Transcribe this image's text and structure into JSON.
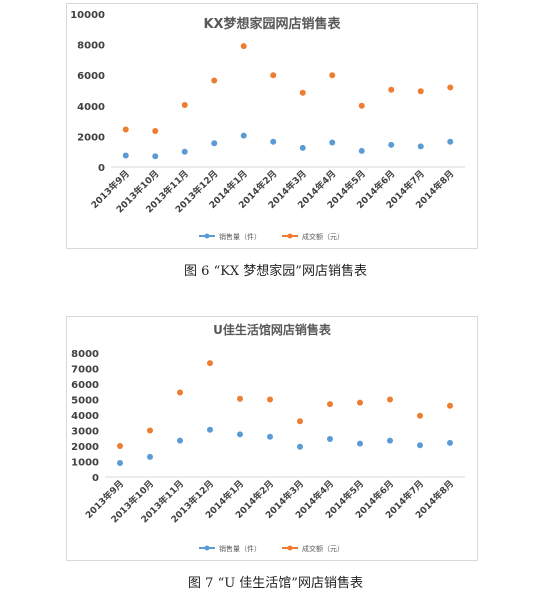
{
  "colors": {
    "series_sales": "#5B9BD5",
    "series_revenue": "#ED7D31",
    "axis": "#d9d9d9",
    "text": "#404040"
  },
  "figures": [
    {
      "caption": "图 6 “KX 梦想家园”网店销售表"
    },
    {
      "caption": "图 7 “U 佳生活馆”网店销售表"
    }
  ],
  "chart_data": [
    {
      "type": "scatter",
      "title": "KX梦想家园网店销售表",
      "xlabel": "",
      "ylabel": "",
      "ylim": [
        0,
        10000
      ],
      "yticks": [
        "0",
        "2000",
        "4000",
        "6000",
        "8000",
        "10000"
      ],
      "ytick_values": [
        0,
        2000,
        4000,
        6000,
        8000,
        10000
      ],
      "grid": false,
      "legend_position": "bottom",
      "categories": [
        "2013年9月",
        "2013年10月",
        "2013年11月",
        "2013年12月",
        "2014年1月",
        "2014年2月",
        "2014年3月",
        "2014年4月",
        "2014年5月",
        "2014年6月",
        "2014年7月",
        "2014年8月"
      ],
      "series": [
        {
          "name": "销售量（件）",
          "values": [
            750,
            700,
            1000,
            1550,
            2050,
            1650,
            1250,
            1600,
            1050,
            1450,
            1350,
            1650
          ]
        },
        {
          "name": "成交额（元）",
          "values": [
            2450,
            2350,
            4050,
            5650,
            7900,
            6000,
            4850,
            6000,
            4000,
            5050,
            4950,
            5200
          ]
        }
      ]
    },
    {
      "type": "scatter",
      "title": "U佳生活馆网店销售表",
      "xlabel": "",
      "ylabel": "",
      "ylim": [
        0,
        8000
      ],
      "yticks": [
        "0",
        "1000",
        "2000",
        "3000",
        "4000",
        "5000",
        "6000",
        "7000",
        "8000"
      ],
      "ytick_values": [
        0,
        1000,
        2000,
        3000,
        4000,
        5000,
        6000,
        7000,
        8000
      ],
      "grid": false,
      "legend_position": "bottom",
      "categories": [
        "2013年9月",
        "2013年10月",
        "2013年11月",
        "2013年12月",
        "2014年1月",
        "2014年2月",
        "2014年3月",
        "2014年4月",
        "2014年5月",
        "2014年6月",
        "2014年7月",
        "2014年8月"
      ],
      "series": [
        {
          "name": "销售量（件）",
          "values": [
            900,
            1300,
            2350,
            3050,
            2750,
            2600,
            1950,
            2450,
            2150,
            2350,
            2050,
            2200
          ]
        },
        {
          "name": "成交额（元）",
          "values": [
            2000,
            3000,
            5450,
            7350,
            5050,
            5000,
            3600,
            4700,
            4800,
            5000,
            3950,
            4600
          ]
        }
      ]
    }
  ]
}
